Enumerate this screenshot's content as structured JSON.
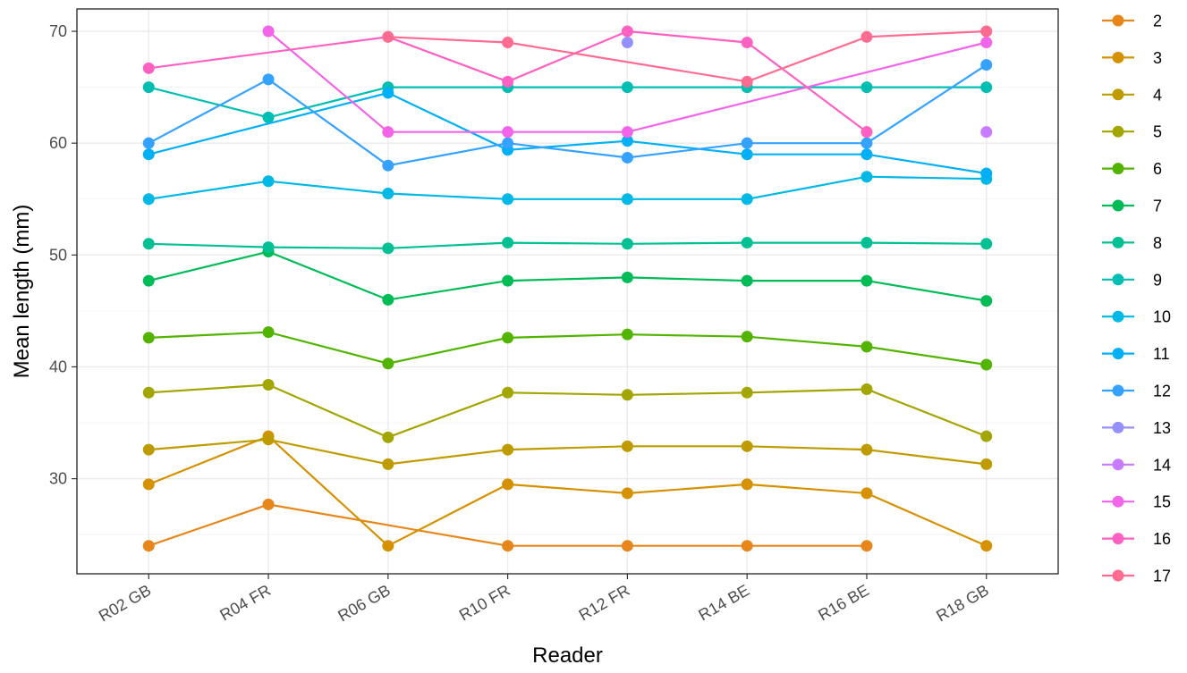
{
  "chart_data": {
    "type": "line",
    "xlabel": "Reader",
    "ylabel": "Mean length (mm)",
    "categories": [
      "R02 GB",
      "R04 FR",
      "R06 GB",
      "R10 FR",
      "R12 FR",
      "R14 BE",
      "R16 BE",
      "R18 GB"
    ],
    "y_ticks": [
      30,
      40,
      50,
      60,
      70
    ],
    "ylim": [
      21.5,
      72
    ],
    "grid": true,
    "legend_position": "right",
    "series": [
      {
        "name": "2",
        "color": "#E7861B",
        "values": [
          24.0,
          27.7,
          null,
          24.0,
          24.0,
          24.0,
          24.0,
          null
        ]
      },
      {
        "name": "3",
        "color": "#D59100",
        "values": [
          29.5,
          33.8,
          24.0,
          29.5,
          28.7,
          29.5,
          28.7,
          24.0
        ]
      },
      {
        "name": "4",
        "color": "#BE9C00",
        "values": [
          32.6,
          33.5,
          31.3,
          32.6,
          32.9,
          32.9,
          32.6,
          31.3
        ]
      },
      {
        "name": "5",
        "color": "#A3A500",
        "values": [
          37.7,
          38.4,
          33.7,
          37.7,
          37.5,
          37.7,
          38.0,
          33.8
        ]
      },
      {
        "name": "6",
        "color": "#53B400",
        "values": [
          42.6,
          43.1,
          40.3,
          42.6,
          42.9,
          42.7,
          41.8,
          40.2
        ]
      },
      {
        "name": "7",
        "color": "#00BC56",
        "values": [
          47.7,
          50.3,
          46.0,
          47.7,
          48.0,
          47.7,
          47.7,
          45.9
        ]
      },
      {
        "name": "8",
        "color": "#00C094",
        "values": [
          51.0,
          50.7,
          50.6,
          51.1,
          51.0,
          51.1,
          51.1,
          51.0
        ]
      },
      {
        "name": "9",
        "color": "#00BFB2",
        "values": [
          65.0,
          62.3,
          65.0,
          65.0,
          65.0,
          65.0,
          65.0,
          65.0
        ]
      },
      {
        "name": "10",
        "color": "#00B8E5",
        "values": [
          55.0,
          56.6,
          55.5,
          55.0,
          55.0,
          55.0,
          57.0,
          56.8
        ]
      },
      {
        "name": "11",
        "color": "#00B0F6",
        "values": [
          59.0,
          null,
          64.5,
          59.4,
          60.2,
          59.0,
          59.0,
          57.3
        ]
      },
      {
        "name": "12",
        "color": "#35A2FF",
        "values": [
          60.0,
          65.7,
          58.0,
          60.0,
          58.7,
          60.0,
          60.0,
          67.0
        ]
      },
      {
        "name": "13",
        "color": "#9590FF",
        "values": [
          null,
          null,
          null,
          null,
          69.0,
          null,
          null,
          null
        ]
      },
      {
        "name": "14",
        "color": "#C77CFF",
        "values": [
          null,
          null,
          null,
          null,
          null,
          null,
          null,
          61.0
        ]
      },
      {
        "name": "15",
        "color": "#F264E8",
        "values": [
          null,
          70.0,
          61.0,
          61.0,
          61.0,
          null,
          null,
          69.0
        ]
      },
      {
        "name": "16",
        "color": "#FF61C3",
        "values": [
          66.7,
          null,
          69.5,
          65.5,
          70.0,
          69.0,
          61.0,
          null
        ]
      },
      {
        "name": "17",
        "color": "#FF6C91",
        "values": [
          null,
          null,
          69.5,
          69.0,
          null,
          65.5,
          69.5,
          70.0
        ]
      }
    ]
  }
}
